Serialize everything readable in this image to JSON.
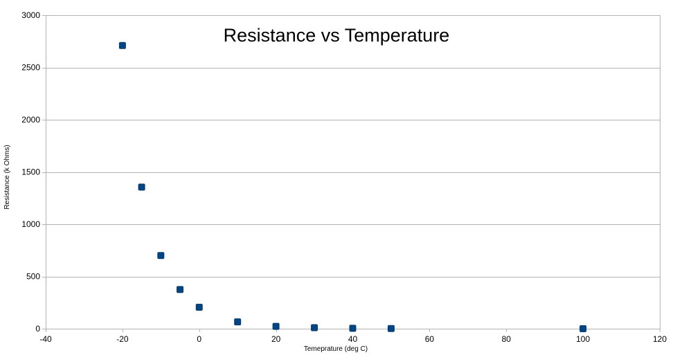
{
  "chart_data": {
    "type": "scatter",
    "title": "Resistance vs Temperature",
    "xlabel": "Temeprature (deg C)",
    "ylabel": "Resistance (k Ohms)",
    "xlim": [
      -40,
      120
    ],
    "ylim": [
      0,
      3000
    ],
    "x_ticks": [
      -40,
      -20,
      0,
      20,
      40,
      60,
      80,
      100,
      120
    ],
    "y_ticks": [
      0,
      500,
      1000,
      1500,
      2000,
      2500,
      3000
    ],
    "grid": "horizontal",
    "legend": "none",
    "marker": "square",
    "colors": {
      "marker_fill": "#004586",
      "grid": "#b3b3b3",
      "axis": "#b3b3b3"
    },
    "series": [
      {
        "x": [
          -20,
          -15,
          -10,
          -5,
          0,
          10,
          20,
          30,
          40,
          50,
          100
        ],
        "y": [
          2710,
          1355,
          700,
          375,
          205,
          65,
          22,
          10,
          4,
          2,
          0
        ]
      }
    ]
  }
}
